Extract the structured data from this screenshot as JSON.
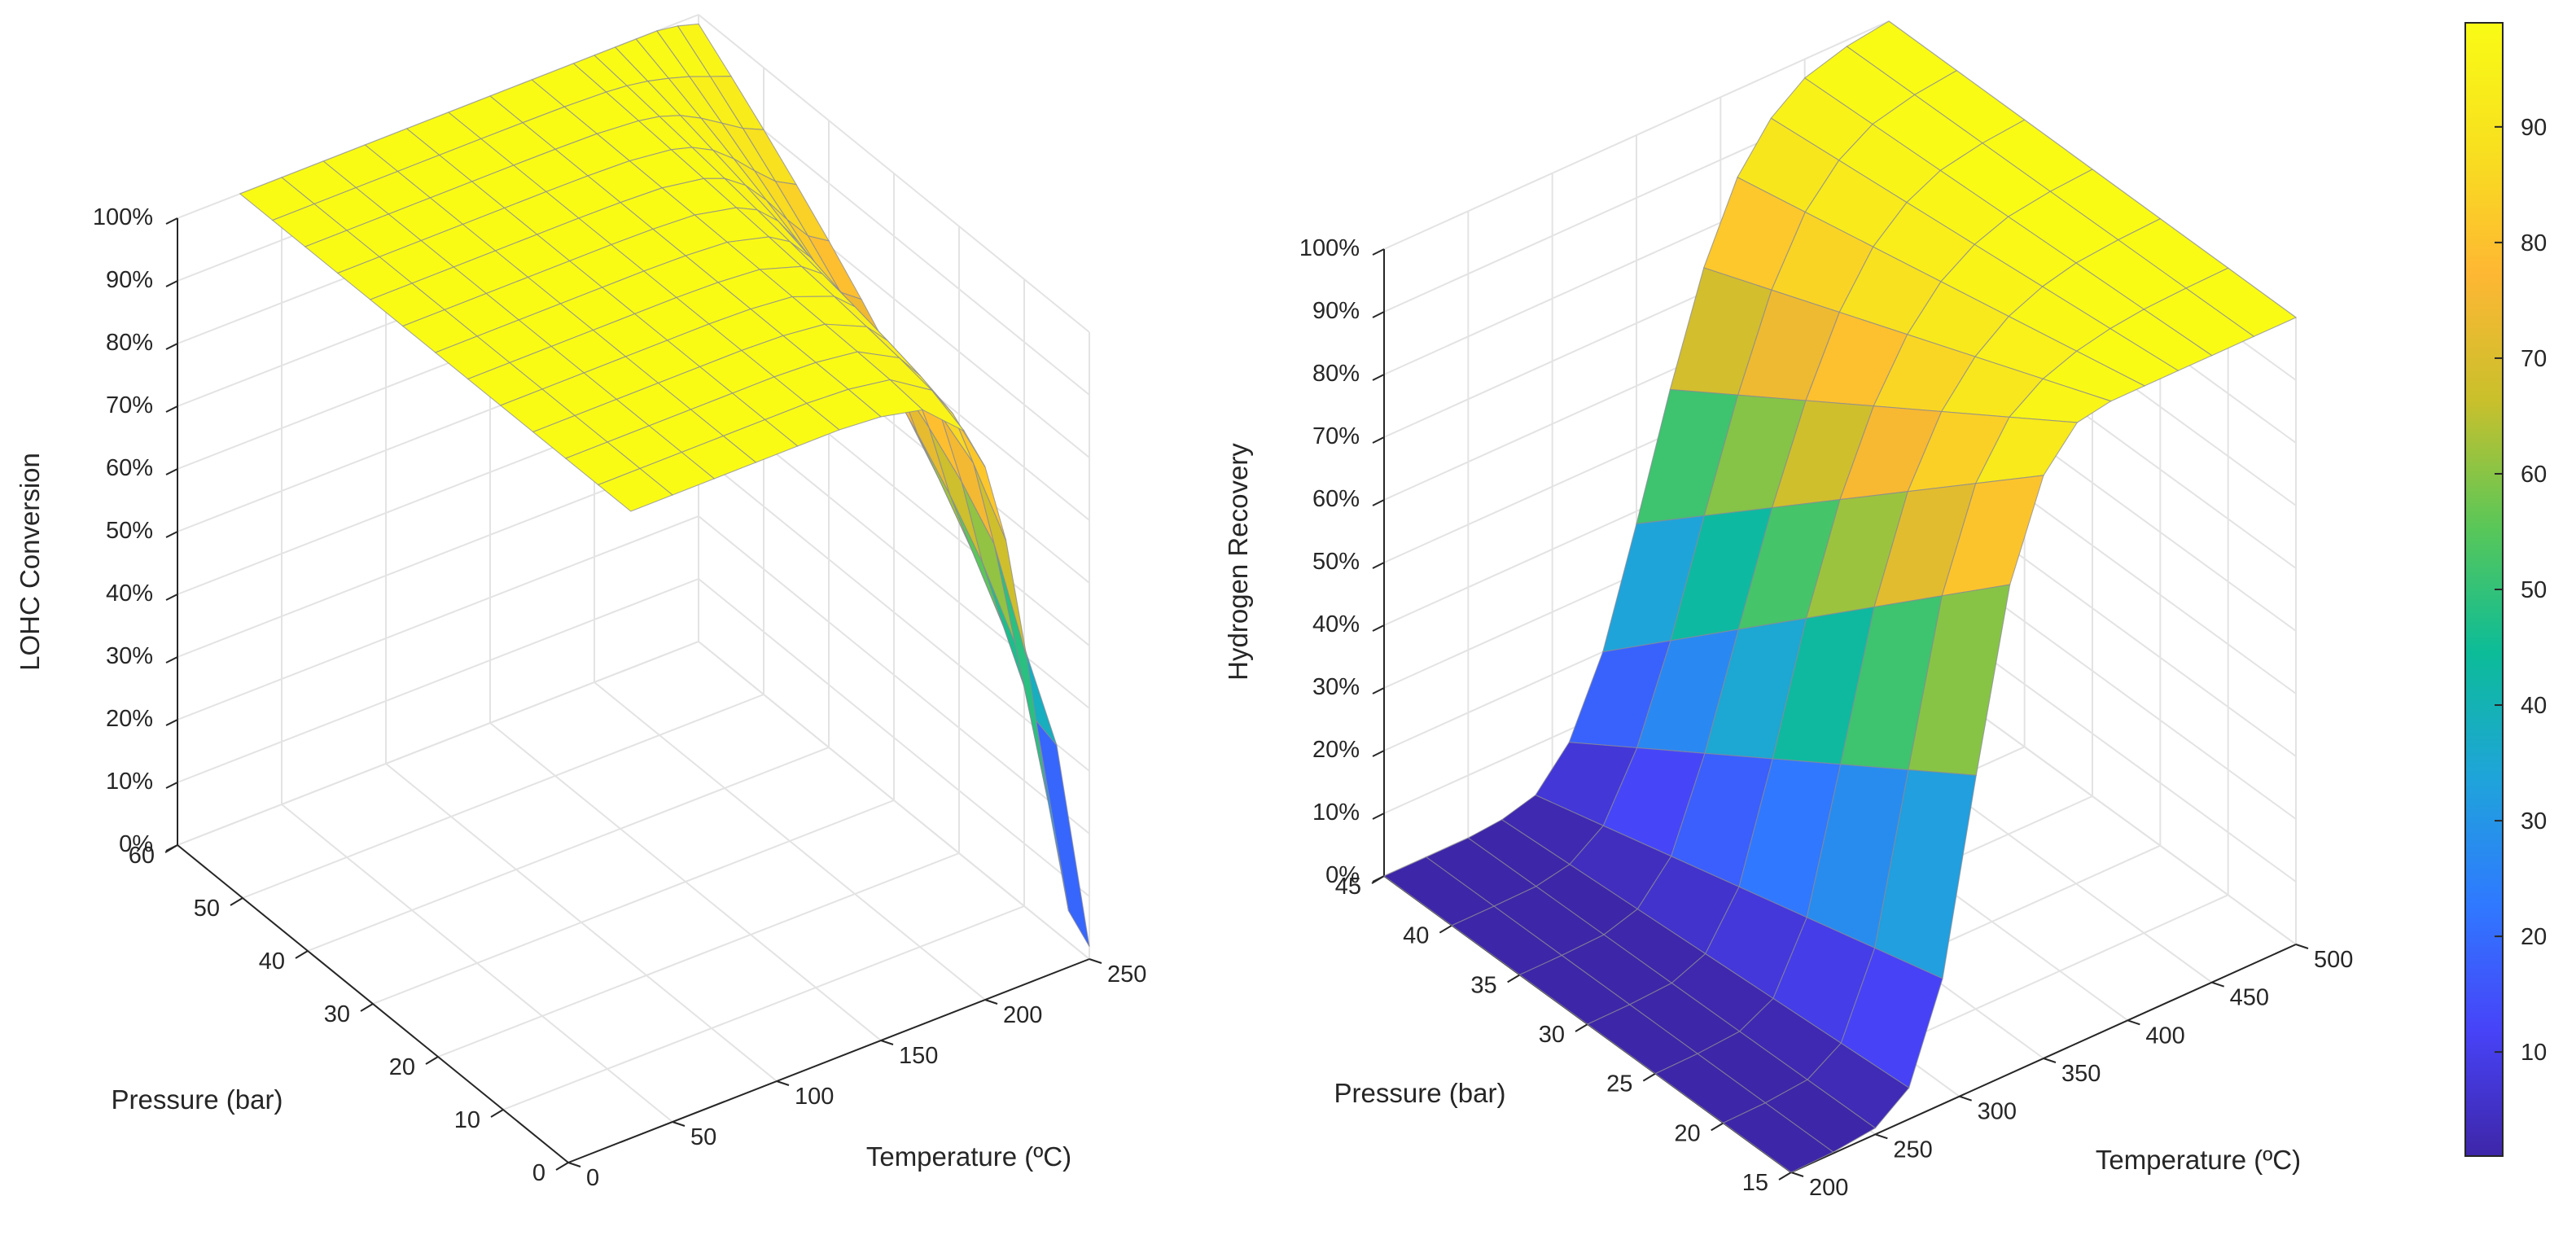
{
  "chart_data": [
    {
      "type": "surface",
      "zlabel": "LOHC Conversion",
      "xlabel": "Temperature (ºC)",
      "ylabel": "Pressure (bar)",
      "xlim": [
        0,
        250
      ],
      "ylim": [
        0,
        60
      ],
      "zlim": [
        0,
        100
      ],
      "x_ticks": [
        "0",
        "50",
        "100",
        "150",
        "200",
        "250"
      ],
      "y_ticks": [
        "0",
        "10",
        "20",
        "30",
        "40",
        "50",
        "60"
      ],
      "z_ticks": [
        "0%",
        "10%",
        "20%",
        "30%",
        "40%",
        "50%",
        "60%",
        "70%",
        "80%",
        "90%",
        "100%"
      ],
      "temperature": [
        30,
        50,
        70,
        90,
        110,
        130,
        150,
        170,
        190,
        200,
        210,
        220,
        230,
        240,
        250
      ],
      "pressure": [
        0,
        5,
        10,
        15,
        20,
        25,
        30,
        35,
        40,
        45,
        50,
        55,
        60
      ],
      "conversion_pct_at_low_pressure": [
        100,
        100,
        100,
        100,
        100,
        100,
        99.5,
        98,
        92,
        85,
        72,
        52,
        28,
        9,
        2
      ],
      "conversion_pct_at_high_pressure": [
        100,
        100,
        100,
        100,
        100,
        100,
        100,
        100,
        100,
        100,
        100,
        100,
        100,
        99.5,
        98.5
      ]
    },
    {
      "type": "surface",
      "zlabel": "Hydrogen Recovery",
      "xlabel": "Temperature (ºC)",
      "ylabel": "Pressure (bar)",
      "xlim": [
        200,
        500
      ],
      "ylim": [
        15,
        45
      ],
      "zlim": [
        0,
        100
      ],
      "x_ticks": [
        "200",
        "250",
        "300",
        "350",
        "400",
        "450",
        "500"
      ],
      "y_ticks": [
        "15",
        "20",
        "25",
        "30",
        "35",
        "40",
        "45"
      ],
      "z_ticks": [
        "0%",
        "10%",
        "20%",
        "30%",
        "40%",
        "50%",
        "60%",
        "70%",
        "80%",
        "90%",
        "100%"
      ],
      "temperature": [
        200,
        225,
        250,
        270,
        290,
        310,
        330,
        350,
        370,
        390,
        410,
        430,
        450,
        475,
        500
      ],
      "pressure": [
        15,
        20,
        25,
        30,
        35,
        40,
        45
      ],
      "recovery_pct_at_15_bar": [
        0,
        0.2,
        1,
        5,
        20,
        50,
        78,
        93,
        99,
        100,
        100,
        100,
        100,
        100,
        100
      ],
      "recovery_pct_at_45_bar": [
        0,
        0,
        0,
        0.5,
        2,
        8,
        20,
        38,
        57,
        74,
        86,
        93,
        97,
        99,
        100
      ]
    }
  ],
  "colorbar": {
    "ticks": [
      "10",
      "20",
      "30",
      "40",
      "50",
      "60",
      "70",
      "80",
      "90"
    ],
    "range": [
      1,
      99
    ],
    "colors": [
      "#3e26a8",
      "#4743f8",
      "#2f79ff",
      "#1fa4da",
      "#0cbc98",
      "#5ac758",
      "#c9c02c",
      "#feb733",
      "#f8e01f",
      "#f9fb15"
    ]
  }
}
